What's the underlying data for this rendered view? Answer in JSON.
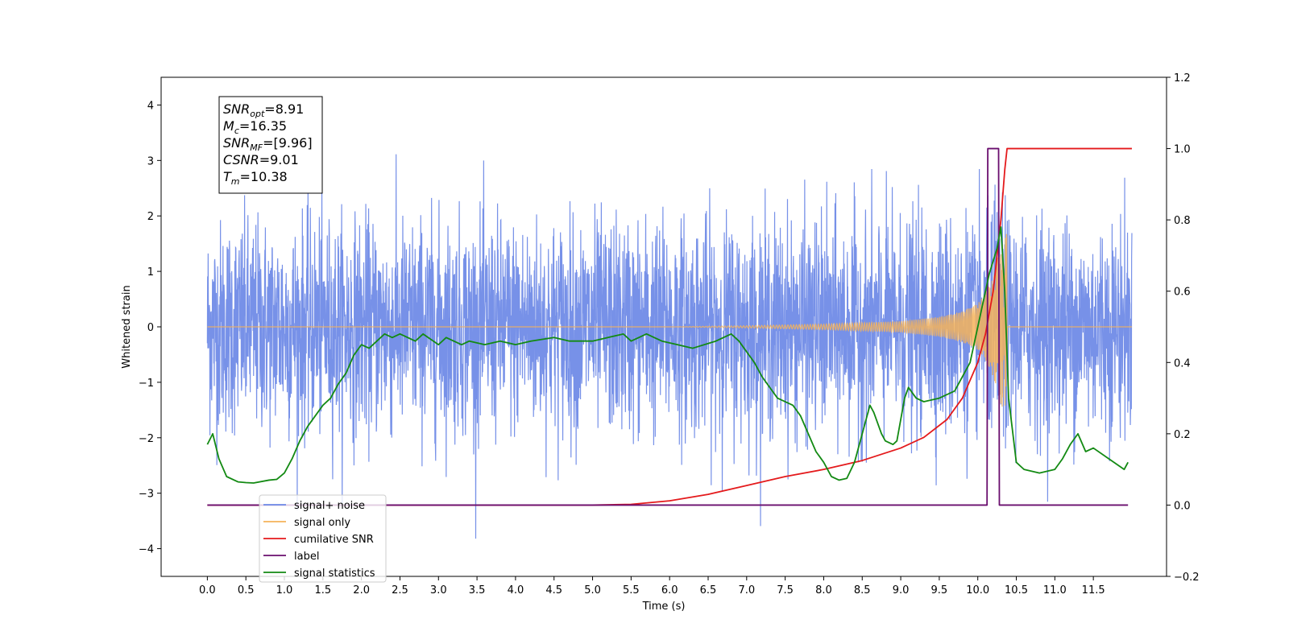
{
  "chart_data": {
    "type": "line",
    "title": "",
    "xlabel": "Time (s)",
    "ylabel": "Whitened strain",
    "xlim": [
      -0.6,
      12.45
    ],
    "ylim_left": [
      -4.5,
      4.5
    ],
    "ylim_right": [
      -0.2,
      1.2
    ],
    "x_ticks": [
      0.0,
      0.5,
      1.0,
      1.5,
      2.0,
      2.5,
      3.0,
      3.5,
      4.0,
      4.5,
      5.0,
      5.5,
      6.0,
      6.5,
      7.0,
      7.5,
      8.0,
      8.5,
      9.0,
      9.5,
      10.0,
      10.5,
      11.0,
      11.5
    ],
    "x_tick_labels": [
      "0.0",
      "0.5",
      "1.0",
      "1.5",
      "2.0",
      "2.5",
      "3.0",
      "3.5",
      "4.0",
      "4.5",
      "5.0",
      "5.5",
      "6.0",
      "6.5",
      "7.0",
      "7.5",
      "8.0",
      "8.5",
      "9.0",
      "9.5",
      "10.0",
      "10.5",
      "11.0",
      "11.5"
    ],
    "y_left_ticks": [
      -4,
      -3,
      -2,
      -1,
      0,
      1,
      2,
      3,
      4
    ],
    "y_left_tick_labels": [
      "−4",
      "−3",
      "−2",
      "−1",
      "0",
      "1",
      "2",
      "3",
      "4"
    ],
    "y_right_ticks": [
      -0.2,
      0.0,
      0.2,
      0.4,
      0.6,
      0.8,
      1.0,
      1.2
    ],
    "y_right_tick_labels": [
      "−0.2",
      "0.0",
      "0.2",
      "0.4",
      "0.6",
      "0.8",
      "1.0",
      "1.2"
    ],
    "grid": false,
    "legend_position": "lower-left",
    "series": [
      {
        "name": "signal+ noise",
        "color": "#6b88e6",
        "axis": "left",
        "noise_std": 0.95,
        "t_range": [
          0.0,
          12.0
        ]
      },
      {
        "name": "signal only",
        "color": "#f5b35a",
        "axis": "left",
        "t_range": [
          0.0,
          10.38
        ],
        "envelope": {
          "x": [
            0.0,
            6.0,
            7.0,
            8.0,
            9.0,
            9.5,
            9.8,
            10.0,
            10.1,
            10.2,
            10.25,
            10.3,
            10.35,
            10.38
          ],
          "y": [
            0.0,
            0.0,
            0.02,
            0.05,
            0.1,
            0.18,
            0.28,
            0.42,
            0.6,
            0.9,
            1.2,
            1.45,
            1.6,
            1.7
          ]
        }
      },
      {
        "name": "cumilative SNR",
        "color": "#e41a1c",
        "axis": "right",
        "x": [
          0.0,
          5.0,
          5.5,
          6.0,
          6.5,
          7.0,
          7.5,
          8.0,
          8.5,
          9.0,
          9.3,
          9.6,
          9.8,
          10.0,
          10.1,
          10.2,
          10.3,
          10.35,
          10.38,
          10.5,
          12.0
        ],
        "y": [
          0.0,
          0.0,
          0.002,
          0.012,
          0.03,
          0.055,
          0.08,
          0.1,
          0.125,
          0.16,
          0.19,
          0.24,
          0.3,
          0.4,
          0.48,
          0.6,
          0.8,
          0.94,
          1.0,
          1.0,
          1.0
        ]
      },
      {
        "name": "label",
        "color": "#6a0e6e",
        "axis": "right",
        "x": [
          0.0,
          10.12,
          10.13,
          10.27,
          10.28,
          11.95
        ],
        "y": [
          0.0,
          0.0,
          1.0,
          1.0,
          0.0,
          0.0
        ]
      },
      {
        "name": "signal statistics",
        "color": "#138a13",
        "axis": "right",
        "x": [
          0.0,
          0.07,
          0.15,
          0.25,
          0.4,
          0.5,
          0.6,
          0.8,
          0.9,
          1.0,
          1.1,
          1.2,
          1.3,
          1.4,
          1.5,
          1.6,
          1.7,
          1.8,
          1.9,
          2.0,
          2.1,
          2.2,
          2.3,
          2.4,
          2.5,
          2.7,
          2.8,
          3.0,
          3.1,
          3.3,
          3.4,
          3.6,
          3.8,
          4.0,
          4.2,
          4.5,
          4.7,
          5.0,
          5.2,
          5.4,
          5.5,
          5.6,
          5.7,
          5.8,
          5.9,
          6.1,
          6.3,
          6.6,
          6.8,
          6.9,
          7.0,
          7.1,
          7.2,
          7.4,
          7.6,
          7.7,
          7.8,
          7.9,
          8.0,
          8.1,
          8.2,
          8.3,
          8.4,
          8.5,
          8.6,
          8.65,
          8.75,
          8.8,
          8.9,
          8.95,
          9.0,
          9.05,
          9.1,
          9.2,
          9.3,
          9.5,
          9.7,
          9.9,
          10.0,
          10.1,
          10.15,
          10.25,
          10.3,
          10.35,
          10.4,
          10.5,
          10.6,
          10.8,
          11.0,
          11.1,
          11.2,
          11.3,
          11.4,
          11.5,
          11.7,
          11.9,
          11.95
        ],
        "y": [
          0.17,
          0.2,
          0.13,
          0.08,
          0.065,
          0.063,
          0.062,
          0.07,
          0.072,
          0.09,
          0.13,
          0.18,
          0.22,
          0.25,
          0.28,
          0.3,
          0.34,
          0.37,
          0.42,
          0.45,
          0.44,
          0.46,
          0.48,
          0.47,
          0.48,
          0.46,
          0.48,
          0.45,
          0.47,
          0.45,
          0.46,
          0.45,
          0.46,
          0.45,
          0.46,
          0.47,
          0.46,
          0.46,
          0.47,
          0.48,
          0.46,
          0.47,
          0.48,
          0.47,
          0.46,
          0.45,
          0.44,
          0.46,
          0.48,
          0.46,
          0.43,
          0.4,
          0.36,
          0.3,
          0.28,
          0.25,
          0.2,
          0.15,
          0.12,
          0.08,
          0.07,
          0.075,
          0.12,
          0.2,
          0.28,
          0.26,
          0.2,
          0.18,
          0.17,
          0.18,
          0.24,
          0.3,
          0.33,
          0.3,
          0.29,
          0.3,
          0.32,
          0.4,
          0.5,
          0.6,
          0.65,
          0.72,
          0.78,
          0.6,
          0.3,
          0.12,
          0.1,
          0.09,
          0.1,
          0.13,
          0.17,
          0.2,
          0.15,
          0.16,
          0.13,
          0.1,
          0.12
        ]
      }
    ],
    "annotation": {
      "lines": [
        {
          "base": "SNR",
          "sub": "opt",
          "value": "=8.91"
        },
        {
          "base": "M",
          "sub": "c",
          "value": "=16.35"
        },
        {
          "base": "SNR",
          "sub": "MF",
          "value": "=[9.96]"
        },
        {
          "base": "CSNR",
          "sub": "",
          "value": "=9.01"
        },
        {
          "base": "T",
          "sub": "m",
          "value": "=10.38"
        }
      ]
    }
  }
}
